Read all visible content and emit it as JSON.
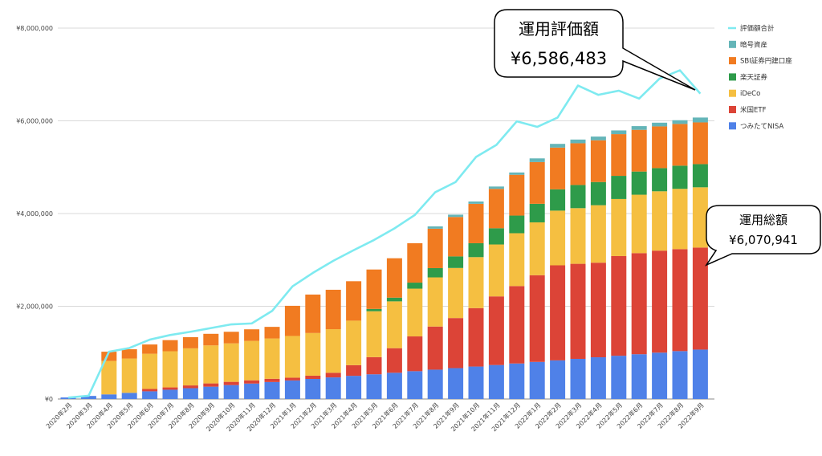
{
  "chart_data": {
    "type": "bar",
    "stacked": true,
    "categories": [
      "2020年2月",
      "2020年3月",
      "2020年4月",
      "2020年5月",
      "2020年6月",
      "2020年7月",
      "2020年8月",
      "2020年9月",
      "2020年10月",
      "2020年11月",
      "2020年12月",
      "2021年1月",
      "2021年2月",
      "2021年3月",
      "2021年4月",
      "2021年5月",
      "2021年6月",
      "2021年7月",
      "2021年8月",
      "2021年9月",
      "2021年10月",
      "2021年11月",
      "2021年12月",
      "2022年1月",
      "2022年2月",
      "2022年3月",
      "2022年4月",
      "2022年5月",
      "2022年6月",
      "2022年7月",
      "2022年8月",
      "2022年9月"
    ],
    "y_ticks": [
      "¥0",
      "¥2,000,000",
      "¥4,000,000",
      "¥6,000,000",
      "¥8,000,000"
    ],
    "ylim": [
      0,
      8000000
    ],
    "grid": true,
    "legend_position": "right",
    "series": [
      {
        "name": "つみたてNISA",
        "color": "#4f81e8",
        "values": [
          33000,
          66000,
          100000,
          133000,
          166000,
          200000,
          233000,
          266000,
          300000,
          333000,
          366000,
          400000,
          433000,
          466000,
          500000,
          533000,
          566000,
          600000,
          633000,
          666000,
          700000,
          733000,
          766000,
          800000,
          833000,
          866000,
          900000,
          933000,
          966000,
          1000000,
          1033000,
          1066000
        ]
      },
      {
        "name": "米国ETF",
        "color": "#dc4437",
        "values": [
          0,
          0,
          0,
          0,
          50000,
          50000,
          60000,
          70000,
          70000,
          70000,
          70000,
          60000,
          70000,
          100000,
          230000,
          370000,
          530000,
          750000,
          930000,
          1080000,
          1260000,
          1480000,
          1670000,
          1870000,
          2050000,
          2050000,
          2040000,
          2150000,
          2180000,
          2200000,
          2200000,
          2200000
        ]
      },
      {
        "name": "iDeCo",
        "color": "#f5bf41",
        "values": [
          0,
          0,
          720000,
          740000,
          760000,
          780000,
          800000,
          820000,
          830000,
          850000,
          870000,
          900000,
          920000,
          940000,
          960000,
          990000,
          1010000,
          1030000,
          1060000,
          1080000,
          1100000,
          1120000,
          1140000,
          1140000,
          1180000,
          1200000,
          1240000,
          1230000,
          1260000,
          1280000,
          1300000,
          1300000
        ]
      },
      {
        "name": "楽天証券",
        "color": "#2e9b4a",
        "values": [
          0,
          0,
          0,
          0,
          0,
          0,
          0,
          0,
          0,
          0,
          0,
          0,
          0,
          0,
          0,
          50000,
          80000,
          130000,
          200000,
          250000,
          300000,
          350000,
          380000,
          400000,
          460000,
          500000,
          500000,
          500000,
          500000,
          500000,
          500000,
          500000
        ]
      },
      {
        "name": "SBI証券円建口座",
        "color": "#f17b21",
        "values": [
          0,
          0,
          200000,
          200000,
          200000,
          240000,
          240000,
          250000,
          250000,
          250000,
          250000,
          650000,
          830000,
          850000,
          850000,
          850000,
          850000,
          850000,
          850000,
          850000,
          850000,
          850000,
          880000,
          900000,
          900000,
          900000,
          900000,
          900000,
          900000,
          900000,
          900000,
          900000
        ]
      },
      {
        "name": "暗号資産",
        "color": "#64b5b8",
        "values": [
          0,
          0,
          0,
          0,
          0,
          0,
          0,
          0,
          0,
          0,
          0,
          0,
          0,
          0,
          0,
          0,
          0,
          0,
          50000,
          50000,
          50000,
          50000,
          50000,
          80000,
          80000,
          80000,
          80000,
          80000,
          80000,
          80000,
          80000,
          105000
        ]
      }
    ],
    "line": {
      "name": "評価額合計",
      "color": "#7eeaf0",
      "values": [
        30000,
        70000,
        1020000,
        1100000,
        1280000,
        1380000,
        1450000,
        1530000,
        1610000,
        1630000,
        1900000,
        2430000,
        2720000,
        2980000,
        3210000,
        3430000,
        3680000,
        3970000,
        4460000,
        4680000,
        5220000,
        5480000,
        5990000,
        5870000,
        6070000,
        6760000,
        6560000,
        6650000,
        6480000,
        6910000,
        7090000,
        6586483
      ]
    },
    "annotations": [
      {
        "title": "運用評価額",
        "value": "¥6,586,483"
      },
      {
        "title": "運用総額",
        "value": "¥6,070,941"
      }
    ]
  }
}
